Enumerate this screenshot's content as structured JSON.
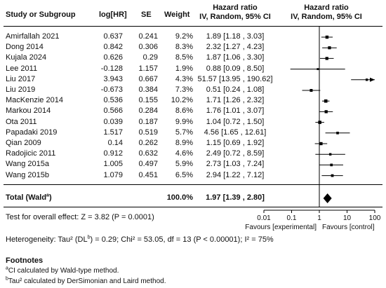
{
  "headers": {
    "study": "Study or Subgroup",
    "loghr": "log[HR]",
    "se": "SE",
    "weight": "Weight",
    "hr_col_title": "Hazard ratio",
    "hr_col_sub": "IV, Random, 95% CI",
    "plot_title": "Hazard ratio",
    "plot_sub": "IV, Random, 95% CI"
  },
  "chart_data": {
    "type": "scatter",
    "subtype": "forest-plot",
    "xscale": "log",
    "xlim": [
      0.01,
      100
    ],
    "xticks": [
      "0.01",
      "0.1",
      "1",
      "10",
      "100"
    ],
    "xtick_values": [
      0.01,
      0.1,
      1,
      10,
      100
    ],
    "xlabel_left": "Favours [experimental]",
    "xlabel_right": "Favours [control]",
    "studies": [
      {
        "name": "Amirfallah 2021",
        "loghr": "0.637",
        "se": "0.241",
        "weight": "9.2%",
        "ci_text": "1.89 [1.18 , 3.03]",
        "hr": 1.89,
        "lo": 1.18,
        "hi": 3.03
      },
      {
        "name": "Dong 2014",
        "loghr": "0.842",
        "se": "0.306",
        "weight": "8.3%",
        "ci_text": "2.32 [1.27 , 4.23]",
        "hr": 2.32,
        "lo": 1.27,
        "hi": 4.23
      },
      {
        "name": "Kujala 2024",
        "loghr": "0.626",
        "se": "0.29",
        "weight": "8.5%",
        "ci_text": "1.87 [1.06 , 3.30]",
        "hr": 1.87,
        "lo": 1.06,
        "hi": 3.3
      },
      {
        "name": "Lee 2011",
        "loghr": "-0.128",
        "se": "1.157",
        "weight": "1.9%",
        "ci_text": "0.88 [0.09 , 8.50]",
        "hr": 0.88,
        "lo": 0.09,
        "hi": 8.5
      },
      {
        "name": "Liu 2017",
        "loghr": "3.943",
        "se": "0.667",
        "weight": "4.3%",
        "ci_text": "51.57 [13.95 , 190.62]",
        "hr": 51.57,
        "lo": 13.95,
        "hi": 190.62
      },
      {
        "name": "Liu 2019",
        "loghr": "-0.673",
        "se": "0.384",
        "weight": "7.3%",
        "ci_text": "0.51 [0.24 , 1.08]",
        "hr": 0.51,
        "lo": 0.24,
        "hi": 1.08
      },
      {
        "name": "MacKenzie 2014",
        "loghr": "0.536",
        "se": "0.155",
        "weight": "10.2%",
        "ci_text": "1.71 [1.26 , 2.32]",
        "hr": 1.71,
        "lo": 1.26,
        "hi": 2.32
      },
      {
        "name": "Markou 2014",
        "loghr": "0.566",
        "se": "0.284",
        "weight": "8.6%",
        "ci_text": "1.76 [1.01 , 3.07]",
        "hr": 1.76,
        "lo": 1.01,
        "hi": 3.07
      },
      {
        "name": "Ota 2011",
        "loghr": "0.039",
        "se": "0.187",
        "weight": "9.9%",
        "ci_text": "1.04 [0.72 , 1.50]",
        "hr": 1.04,
        "lo": 0.72,
        "hi": 1.5
      },
      {
        "name": "Papadaki 2019",
        "loghr": "1.517",
        "se": "0.519",
        "weight": "5.7%",
        "ci_text": "4.56 [1.65 , 12.61]",
        "hr": 4.56,
        "lo": 1.65,
        "hi": 12.61
      },
      {
        "name": "Qian 2009",
        "loghr": "0.14",
        "se": "0.262",
        "weight": "8.9%",
        "ci_text": "1.15 [0.69 , 1.92]",
        "hr": 1.15,
        "lo": 0.69,
        "hi": 1.92
      },
      {
        "name": "Radojicic 2011",
        "loghr": "0.912",
        "se": "0.632",
        "weight": "4.6%",
        "ci_text": "2.49 [0.72 , 8.59]",
        "hr": 2.49,
        "lo": 0.72,
        "hi": 8.59
      },
      {
        "name": "Wang 2015a",
        "loghr": "1.005",
        "se": "0.497",
        "weight": "5.9%",
        "ci_text": "2.73 [1.03 , 7.24]",
        "hr": 2.73,
        "lo": 1.03,
        "hi": 7.24
      },
      {
        "name": "Wang 2015b",
        "loghr": "1.079",
        "se": "0.451",
        "weight": "6.5%",
        "ci_text": "2.94 [1.22 , 7.12]",
        "hr": 2.94,
        "lo": 1.22,
        "hi": 7.12
      }
    ],
    "total": {
      "label": "Total (Wald",
      "label_sup": "a",
      "label_end": ")",
      "weight": "100.0%",
      "ci_text": "1.97 [1.39 , 2.80]",
      "hr": 1.97,
      "lo": 1.39,
      "hi": 2.8
    }
  },
  "overall_effect": "Test for overall effect: Z = 3.82 (P = 0.0001)",
  "heterogeneity": {
    "pre": "Heterogeneity: Tau² (DL",
    "sup": "b",
    "post": ") = 0.29; Chi² = 53.05, df = 13 (P < 0.00001); I² = 75%"
  },
  "footnotes": {
    "title": "Footnotes",
    "a_sup": "a",
    "a_text": "CI calculated by Wald-type method.",
    "b_sup": "b",
    "b_text": "Tau² calculated by DerSimonian and Laird method."
  },
  "colors": {
    "text": "#111111",
    "marker": "#000000"
  }
}
